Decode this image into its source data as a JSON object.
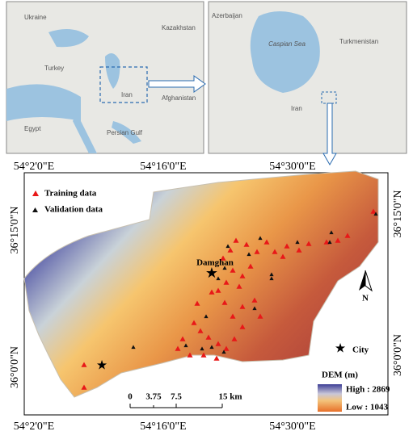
{
  "inset_maps": [
    {
      "labels": [
        "Ukraine",
        "Kazakhstan",
        "Turkey",
        "Iran",
        "Afghanistan",
        "Egypt",
        "Persian Gulf"
      ]
    },
    {
      "labels": [
        "Azerbaijan",
        "Caspian Sea",
        "Turkmenistan",
        "Iran"
      ]
    }
  ],
  "axes": {
    "top": [
      "54°2'0\"E",
      "54°16'0\"E",
      "54°30'0\"E"
    ],
    "bottom": [
      "54°2'0\"E",
      "54°16'0\"E",
      "54°30'0\"E"
    ],
    "left": [
      "36°15'0\"N",
      "36°0'0\"N"
    ],
    "right": [
      "36°15'0\"N",
      "36°0'0\"N"
    ]
  },
  "legend": {
    "training": "Training data",
    "validation": "Validation data",
    "city": "City",
    "dem_title": "DEM (m)",
    "high": "High : 2869",
    "low": "Low : 1043"
  },
  "scale_bar": [
    "0",
    "3.75",
    "7.5",
    "15 km"
  ],
  "city_label": "Damghan",
  "north": "N"
}
